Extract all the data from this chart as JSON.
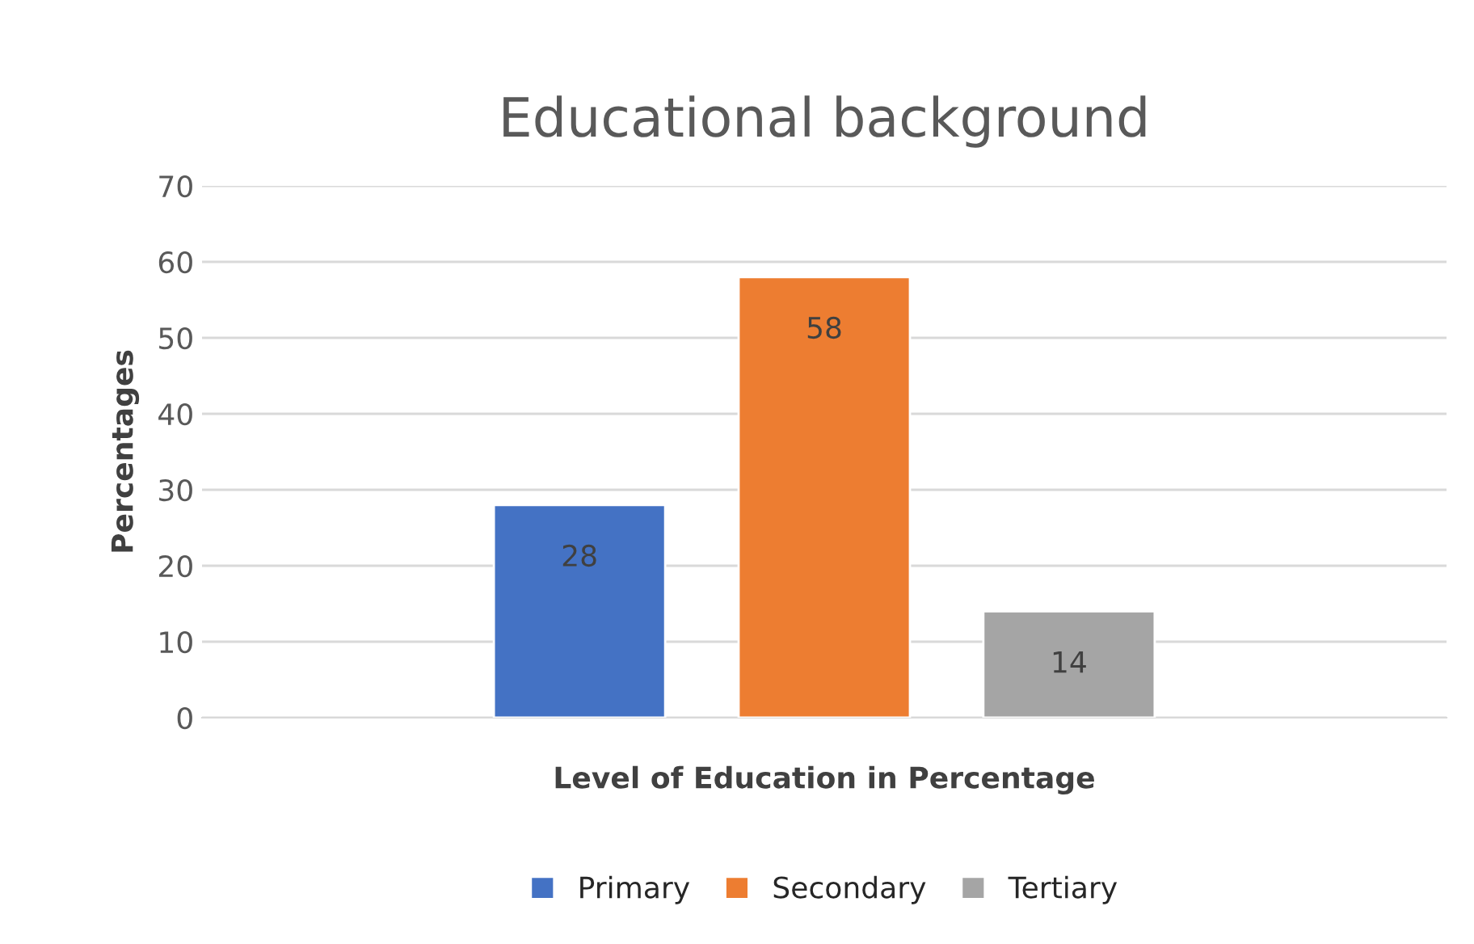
{
  "chart_data": {
    "type": "bar",
    "title": "Educational background",
    "xlabel": "Level of Education in Percentage",
    "ylabel": "Percentages",
    "categories": [
      null
    ],
    "series": [
      {
        "name": "Primary",
        "color": "#4472c4",
        "values": [
          28
        ]
      },
      {
        "name": "Secondary",
        "color": "#ed7d31",
        "values": [
          58
        ]
      },
      {
        "name": "Tertiary",
        "color": "#a5a5a5",
        "values": [
          14
        ]
      }
    ],
    "ylim": [
      0,
      70
    ],
    "yticks": [
      0,
      10,
      20,
      30,
      40,
      50,
      60,
      70
    ],
    "grid": "y",
    "legend": "bottom",
    "data_labels": true
  }
}
